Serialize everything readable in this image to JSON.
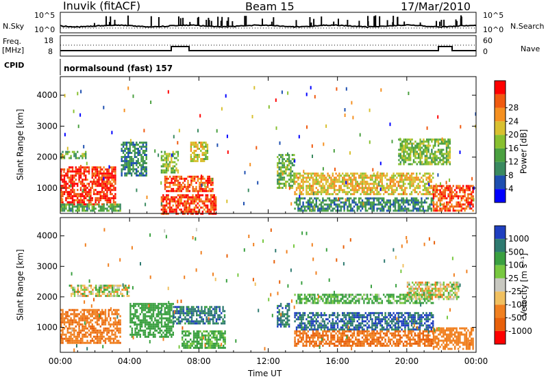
{
  "header": {
    "station": "Inuvik (fitACF)",
    "beam": "Beam 15",
    "date": "17/Mar/2010"
  },
  "side_labels": {
    "nsky": "N.Sky",
    "nsearch": "N.Search",
    "freq": "Freq.",
    "mhz": "[MHz]",
    "nave": "Nave",
    "cpid": "CPID"
  },
  "strip_ticks": {
    "nsky_left": [
      "10^5",
      "10^0"
    ],
    "nsky_right": [
      "10^5",
      "10^0"
    ],
    "freq_left": [
      "18",
      "8"
    ],
    "nave_right": [
      "60",
      "0"
    ]
  },
  "cpid_label": "normalsound (fast) 157",
  "colors": {
    "power_scale": [
      "#0000ff",
      "#1e4fb0",
      "#3a8a60",
      "#4aa040",
      "#88c030",
      "#d8c030",
      "#f59020",
      "#f05a10",
      "#ff0000"
    ],
    "velocity_scale": [
      "#1f3fc0",
      "#2e7a70",
      "#3aa040",
      "#78c840",
      "#c8c8c0",
      "#f0c060",
      "#f08020",
      "#e8600a",
      "#ff0000"
    ]
  },
  "chart_data": [
    {
      "type": "heatmap",
      "panel": "power",
      "ylabel": "Slant Range [km]",
      "xlabel": "",
      "x_ticks": [
        "00:00",
        "04:00",
        "08:00",
        "12:00",
        "16:00",
        "20:00",
        "00:00"
      ],
      "xlim_hours": [
        0,
        24
      ],
      "ylim": [
        180,
        4600
      ],
      "y_ticks": [
        1000,
        2000,
        3000,
        4000
      ],
      "colorbar": {
        "label": "Power [dB]",
        "range": [
          0,
          32
        ],
        "ticks": [
          "4",
          "8",
          "12",
          "16",
          "20",
          "24",
          "28"
        ]
      },
      "regions": [
        {
          "t0": 0.0,
          "t1": 3.2,
          "r0": 450,
          "r1": 1700,
          "level": 29
        },
        {
          "t0": 0.0,
          "t1": 3.5,
          "r0": 300,
          "r1": 500,
          "level": 12
        },
        {
          "t0": 0.0,
          "t1": 1.5,
          "r0": 2000,
          "r1": 2200,
          "level": 14
        },
        {
          "t0": 3.5,
          "t1": 5.0,
          "r0": 1400,
          "r1": 2500,
          "level": 9
        },
        {
          "t0": 5.8,
          "t1": 6.8,
          "r0": 1500,
          "r1": 2200,
          "level": 16
        },
        {
          "t0": 5.8,
          "t1": 9.0,
          "r0": 200,
          "r1": 800,
          "level": 28
        },
        {
          "t0": 6.0,
          "t1": 8.8,
          "r0": 900,
          "r1": 1400,
          "level": 27
        },
        {
          "t0": 7.5,
          "t1": 8.5,
          "r0": 1900,
          "r1": 2500,
          "level": 18
        },
        {
          "t0": 12.5,
          "t1": 13.5,
          "r0": 1000,
          "r1": 2100,
          "level": 14
        },
        {
          "t0": 13.5,
          "t1": 21.5,
          "r0": 800,
          "r1": 1500,
          "level": 20
        },
        {
          "t0": 13.5,
          "t1": 21.5,
          "r0": 300,
          "r1": 700,
          "level": 9
        },
        {
          "t0": 19.5,
          "t1": 22.5,
          "r0": 1800,
          "r1": 2600,
          "level": 15
        },
        {
          "t0": 21.5,
          "t1": 23.8,
          "r0": 300,
          "r1": 1100,
          "level": 27
        }
      ]
    },
    {
      "type": "heatmap",
      "panel": "velocity",
      "ylabel": "Slant Range [km]",
      "xlabel": "Time UT",
      "x_ticks": [
        "00:00",
        "04:00",
        "08:00",
        "12:00",
        "16:00",
        "20:00",
        "00:00"
      ],
      "xlim_hours": [
        0,
        24
      ],
      "ylim": [
        180,
        4600
      ],
      "y_ticks": [
        1000,
        2000,
        3000,
        4000
      ],
      "colorbar": {
        "label": "Velocity [m s⁻¹]",
        "ticks": [
          "1000",
          "500",
          "100",
          "25",
          "-25",
          "-100",
          "-500",
          "-1000"
        ]
      },
      "regions": [
        {
          "t0": 0.0,
          "t1": 3.5,
          "r0": 500,
          "r1": 1600,
          "level": -400
        },
        {
          "t0": 0.5,
          "t1": 4.0,
          "r0": 2000,
          "r1": 2400,
          "level": 0
        },
        {
          "t0": 4.0,
          "t1": 6.5,
          "r0": 700,
          "r1": 1800,
          "level": 300
        },
        {
          "t0": 6.5,
          "t1": 9.5,
          "r0": 1100,
          "r1": 1700,
          "level": 800
        },
        {
          "t0": 7.0,
          "t1": 9.5,
          "r0": 300,
          "r1": 900,
          "level": 200
        },
        {
          "t0": 12.5,
          "t1": 13.2,
          "r0": 1000,
          "r1": 1800,
          "level": 800
        },
        {
          "t0": 13.5,
          "t1": 21.5,
          "r0": 900,
          "r1": 1500,
          "level": 900
        },
        {
          "t0": 13.5,
          "t1": 21.5,
          "r0": 400,
          "r1": 900,
          "level": -500
        },
        {
          "t0": 13.5,
          "t1": 21.5,
          "r0": 1800,
          "r1": 2100,
          "level": 150
        },
        {
          "t0": 20.0,
          "t1": 23.0,
          "r0": 1900,
          "r1": 2500,
          "level": 0
        },
        {
          "t0": 21.5,
          "t1": 23.8,
          "r0": 300,
          "r1": 1000,
          "level": -300
        }
      ]
    }
  ]
}
